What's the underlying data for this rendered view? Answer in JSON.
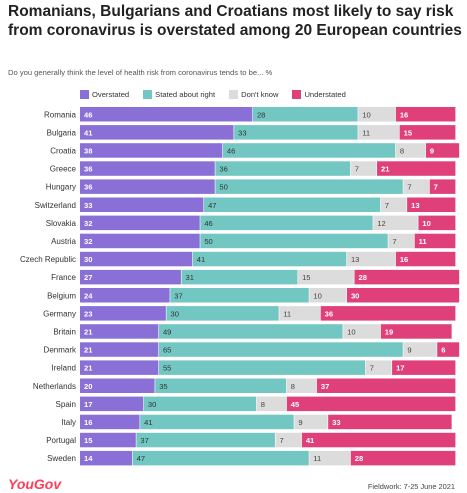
{
  "title": "Romanians, Bulgarians and Croatians most likely to say risk from coronavirus is overstated among 20 European countries",
  "subtitle": "Do you generally think the level of health risk from coronavirus tends to be... %",
  "logo": "YouGov",
  "fieldwork": "Fieldwork: 7-25 June 2021",
  "chart_data": {
    "type": "bar",
    "orientation": "horizontal",
    "stacked": true,
    "categories": [
      "Romania",
      "Bulgaria",
      "Croatia",
      "Greece",
      "Hungary",
      "Switzerland",
      "Slovakia",
      "Austria",
      "Czech Republic",
      "France",
      "Belgium",
      "Germany",
      "Britain",
      "Denmark",
      "Ireland",
      "Netherlands",
      "Spain",
      "Italy",
      "Portugal",
      "Sweden"
    ],
    "series": [
      {
        "name": "Overstated",
        "color": "#8a70d6",
        "label_color": "#ffffff",
        "values": [
          46,
          41,
          38,
          36,
          36,
          33,
          32,
          32,
          30,
          27,
          24,
          23,
          21,
          21,
          21,
          20,
          17,
          16,
          15,
          14
        ]
      },
      {
        "name": "Stated about right",
        "color": "#72c7c2",
        "label_color": "#333333",
        "values": [
          28,
          33,
          46,
          36,
          50,
          47,
          46,
          50,
          41,
          31,
          37,
          30,
          49,
          65,
          55,
          35,
          30,
          41,
          37,
          47
        ]
      },
      {
        "name": "Don't know",
        "color": "#dcdcdc",
        "label_color": "#444444",
        "values": [
          10,
          11,
          8,
          7,
          7,
          7,
          12,
          7,
          13,
          15,
          10,
          11,
          10,
          9,
          7,
          8,
          8,
          9,
          7,
          11
        ]
      },
      {
        "name": "Understated",
        "color": "#e0407a",
        "label_color": "#ffffff",
        "values": [
          16,
          15,
          9,
          21,
          7,
          13,
          10,
          11,
          16,
          28,
          30,
          36,
          19,
          6,
          17,
          37,
          45,
          33,
          41,
          28
        ]
      }
    ],
    "xlim": [
      0,
      100
    ],
    "legend": "top",
    "grid": false
  }
}
